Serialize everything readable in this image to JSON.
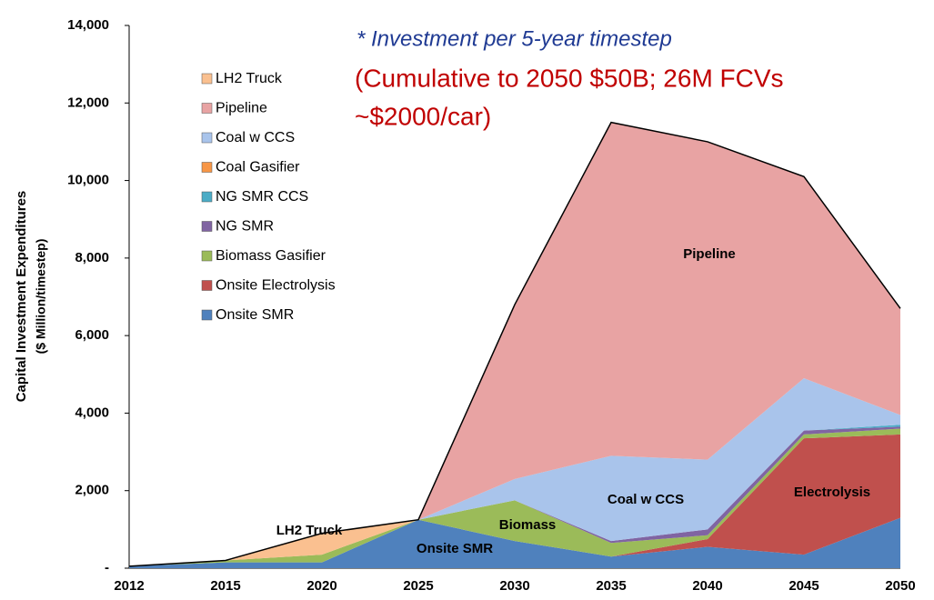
{
  "chart_data": {
    "type": "stacked_area",
    "y_label": [
      "Capital Investment Expenditures",
      "($ Million/timestep)"
    ],
    "annotations": [
      "* Investment per 5-year timestep",
      "(Cumulative to 2050 $50B; 26M FCVs",
      "~$2000/car)"
    ],
    "area_labels": [
      "Pipeline",
      "Coal w CCS",
      "Electrolysis",
      "Biomass",
      "Onsite SMR",
      "LH2 Truck"
    ],
    "categories": [
      "2012",
      "2015",
      "2020",
      "2025",
      "2030",
      "2035",
      "2040",
      "2045",
      "2050"
    ],
    "series": [
      {
        "name": "Onsite SMR",
        "color": "#4f81bd",
        "values": [
          50,
          150,
          150,
          1250,
          700,
          300,
          550,
          350,
          1300
        ]
      },
      {
        "name": "Onsite Electrolysis",
        "color": "#c0504d",
        "values": [
          0,
          0,
          0,
          0,
          0,
          0,
          200,
          3000,
          2150
        ]
      },
      {
        "name": "Biomass Gasifier",
        "color": "#9bbb59",
        "values": [
          0,
          50,
          200,
          0,
          1050,
          350,
          100,
          100,
          150
        ]
      },
      {
        "name": "NG SMR",
        "color": "#8064a2",
        "values": [
          0,
          0,
          0,
          0,
          0,
          50,
          150,
          100,
          50
        ]
      },
      {
        "name": "NG SMR CCS",
        "color": "#4bacc6",
        "values": [
          0,
          0,
          0,
          0,
          0,
          0,
          0,
          0,
          50
        ]
      },
      {
        "name": "Coal Gasifier",
        "color": "#f79646",
        "values": [
          0,
          0,
          0,
          0,
          0,
          0,
          0,
          0,
          0
        ]
      },
      {
        "name": "Coal w CCS",
        "color": "#a9c4eb",
        "values": [
          0,
          0,
          0,
          0,
          550,
          2200,
          1800,
          1350,
          250
        ]
      },
      {
        "name": "Pipeline",
        "color": "#e8a3a3",
        "values": [
          0,
          0,
          0,
          0,
          4500,
          8600,
          8200,
          5200,
          2750
        ]
      },
      {
        "name": "LH2 Truck",
        "color": "#fac090",
        "values": [
          0,
          0,
          550,
          0,
          0,
          0,
          0,
          0,
          0
        ]
      }
    ],
    "ylim": [
      0,
      14000
    ],
    "yticks": [
      {
        "value": 0,
        "label": "-"
      },
      {
        "value": 2000,
        "label": "2,000"
      },
      {
        "value": 4000,
        "label": "4,000"
      },
      {
        "value": 6000,
        "label": "6,000"
      },
      {
        "value": 8000,
        "label": "8,000"
      },
      {
        "value": 10000,
        "label": "10,000"
      },
      {
        "value": 12000,
        "label": "12,000"
      },
      {
        "value": 14000,
        "label": "14,000"
      }
    ]
  }
}
